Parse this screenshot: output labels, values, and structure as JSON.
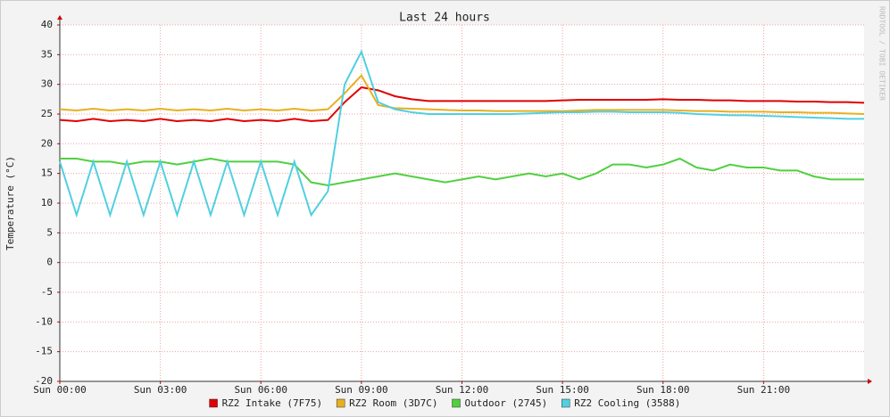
{
  "chart_data": {
    "type": "line",
    "title": "Last 24 hours",
    "y_label": "Temperature (°C)",
    "watermark": "RRDTOOL / TOBI OETIKER",
    "x": [
      0,
      0.5,
      1,
      1.5,
      2,
      2.5,
      3,
      3.5,
      4,
      4.5,
      5,
      5.5,
      6,
      6.5,
      7,
      7.5,
      8,
      8.5,
      9,
      9.5,
      10,
      10.5,
      11,
      11.5,
      12,
      12.5,
      13,
      13.5,
      14,
      14.5,
      15,
      15.5,
      16,
      16.5,
      17,
      17.5,
      18,
      18.5,
      19,
      19.5,
      20,
      20.5,
      21,
      21.5,
      22,
      22.5,
      23,
      23.5,
      24
    ],
    "xlim": [
      0,
      24
    ],
    "xticks": [
      {
        "value": 0,
        "label": "Sun 00:00"
      },
      {
        "value": 3,
        "label": "Sun 03:00"
      },
      {
        "value": 6,
        "label": "Sun 06:00"
      },
      {
        "value": 9,
        "label": "Sun 09:00"
      },
      {
        "value": 12,
        "label": "Sun 12:00"
      },
      {
        "value": 15,
        "label": "Sun 15:00"
      },
      {
        "value": 18,
        "label": "Sun 18:00"
      },
      {
        "value": 21,
        "label": "Sun 21:00"
      }
    ],
    "ylim": [
      -20,
      40
    ],
    "yticks": [
      -20,
      -15,
      -10,
      -5,
      0,
      5,
      10,
      15,
      20,
      25,
      30,
      35,
      40
    ],
    "grid": true,
    "series": [
      {
        "name": "RZ2 Intake (7F75)",
        "color": "#e00000",
        "values": [
          24,
          23.8,
          24.2,
          23.8,
          24,
          23.8,
          24.2,
          23.8,
          24,
          23.8,
          24.2,
          23.8,
          24,
          23.8,
          24.2,
          23.8,
          24,
          27,
          29.5,
          29,
          28,
          27.5,
          27.2,
          27.2,
          27.2,
          27.2,
          27.2,
          27.2,
          27.2,
          27.2,
          27.3,
          27.4,
          27.4,
          27.4,
          27.4,
          27.4,
          27.5,
          27.4,
          27.4,
          27.3,
          27.3,
          27.2,
          27.2,
          27.2,
          27.1,
          27.1,
          27,
          27,
          26.9
        ]
      },
      {
        "name": "RZ2 Room (3D7C)",
        "color": "#e8b020",
        "values": [
          25.8,
          25.6,
          25.9,
          25.6,
          25.8,
          25.6,
          25.9,
          25.6,
          25.8,
          25.6,
          25.9,
          25.6,
          25.8,
          25.6,
          25.9,
          25.6,
          25.8,
          28.5,
          31.5,
          26.5,
          26,
          25.9,
          25.8,
          25.7,
          25.6,
          25.6,
          25.5,
          25.5,
          25.5,
          25.5,
          25.5,
          25.6,
          25.7,
          25.7,
          25.7,
          25.7,
          25.7,
          25.6,
          25.5,
          25.5,
          25.4,
          25.4,
          25.4,
          25.3,
          25.3,
          25.2,
          25.2,
          25.1,
          25
        ]
      },
      {
        "name": "Outdoor (2745)",
        "color": "#50d040",
        "values": [
          17.5,
          17.5,
          17,
          17,
          16.5,
          17,
          17,
          16.5,
          17,
          17.5,
          17,
          17,
          17,
          17,
          16.5,
          13.5,
          13,
          13.5,
          14,
          14.5,
          15,
          14.5,
          14,
          13.5,
          14,
          14.5,
          14,
          14.5,
          15,
          14.5,
          15,
          14,
          15,
          16.5,
          16.5,
          16,
          16.5,
          17.5,
          16,
          15.5,
          16.5,
          16,
          16,
          15.5,
          15.5,
          14.5,
          14,
          14,
          14
        ]
      },
      {
        "name": "RZ2 Cooling (3588)",
        "color": "#50d0e0",
        "values": [
          17,
          8,
          17,
          8,
          17,
          8,
          17,
          8,
          17,
          8,
          17,
          8,
          17,
          8,
          17,
          8,
          12,
          30,
          35.5,
          27,
          25.8,
          25.3,
          25,
          25,
          25,
          25,
          25,
          25,
          25.1,
          25.2,
          25.3,
          25.3,
          25.4,
          25.4,
          25.3,
          25.3,
          25.3,
          25.2,
          25,
          24.9,
          24.8,
          24.8,
          24.7,
          24.6,
          24.5,
          24.4,
          24.3,
          24.2,
          24.2
        ]
      }
    ]
  }
}
